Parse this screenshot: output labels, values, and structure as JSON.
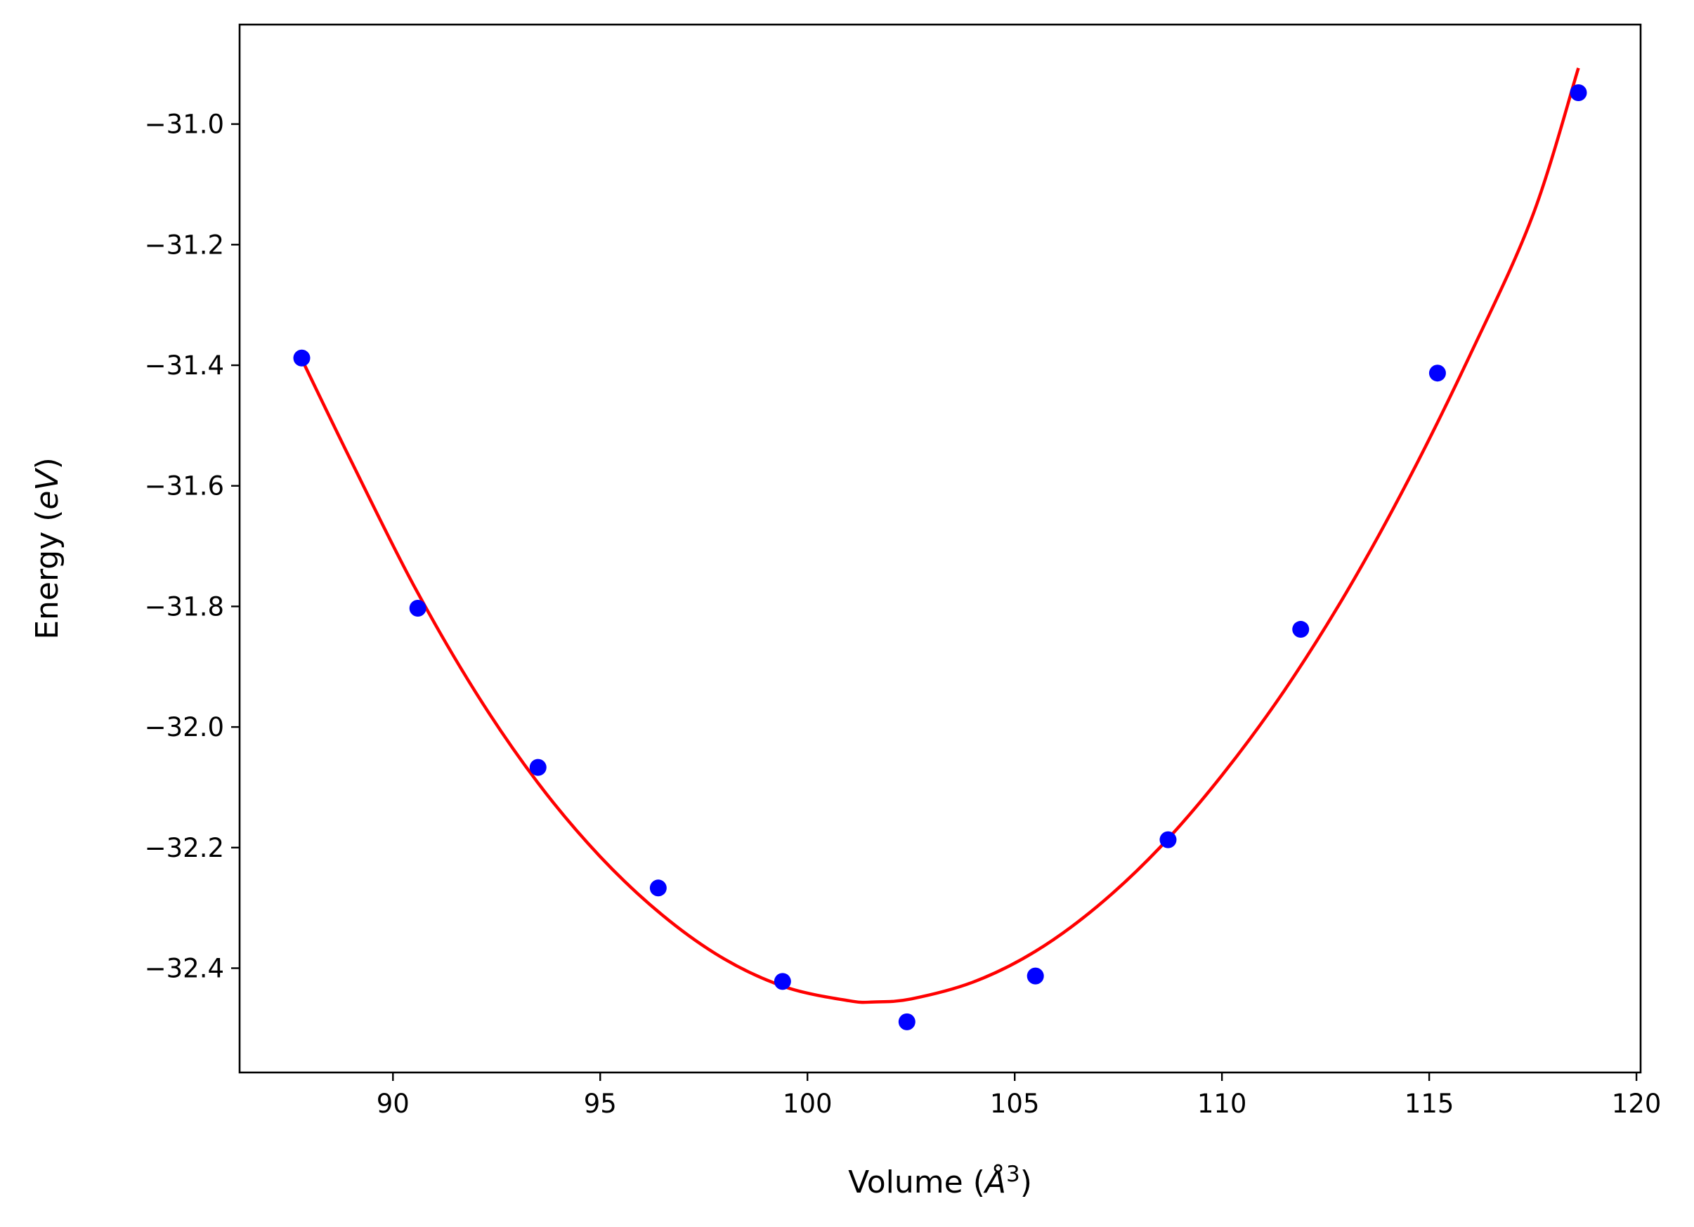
{
  "chart_data": {
    "type": "scatter",
    "xlabel": {
      "prefix": "Volume (",
      "symbol": "Å",
      "sup": "3",
      "suffix": ")"
    },
    "ylabel": {
      "prefix": "Energy (",
      "var": "eV",
      "suffix": ")"
    },
    "xlim": [
      86.3,
      120.1
    ],
    "ylim": [
      -32.573,
      -30.835
    ],
    "x_ticks": [
      90,
      95,
      100,
      105,
      110,
      115,
      120
    ],
    "y_ticks": [
      -31.0,
      -31.2,
      -31.4,
      -31.6,
      -31.8,
      -32.0,
      -32.2,
      -32.4
    ],
    "x_tick_labels": [
      "90",
      "95",
      "100",
      "105",
      "110",
      "115",
      "120"
    ],
    "y_tick_labels": [
      "−31.0",
      "−31.2",
      "−31.4",
      "−31.6",
      "−31.8",
      "−32.0",
      "−32.2",
      "−32.4"
    ],
    "grid": false,
    "series": [
      {
        "kind": "points",
        "color": "#0000ff",
        "x": [
          87.8,
          90.6,
          93.5,
          96.4,
          99.4,
          102.4,
          105.5,
          108.7,
          111.9,
          115.2,
          118.6
        ],
        "y": [
          -31.388,
          -31.803,
          -32.067,
          -32.267,
          -32.422,
          -32.489,
          -32.413,
          -32.187,
          -31.838,
          -31.413,
          -30.948
        ]
      },
      {
        "kind": "fit-curve",
        "color": "#ff0000",
        "x": [
          87.8,
          89.0,
          90.5,
          92.0,
          93.5,
          95.0,
          96.5,
          98.0,
          99.5,
          101.0,
          101.6,
          102.5,
          104.0,
          105.5,
          107.0,
          108.5,
          110.0,
          111.5,
          113.0,
          114.5,
          116.0,
          117.5,
          118.6
        ],
        "y": [
          -31.39,
          -31.56,
          -31.765,
          -31.943,
          -32.093,
          -32.215,
          -32.312,
          -32.385,
          -32.432,
          -32.454,
          -32.456,
          -32.451,
          -32.423,
          -32.372,
          -32.297,
          -32.2,
          -32.08,
          -31.94,
          -31.777,
          -31.59,
          -31.381,
          -31.151,
          -30.907
        ]
      }
    ]
  }
}
